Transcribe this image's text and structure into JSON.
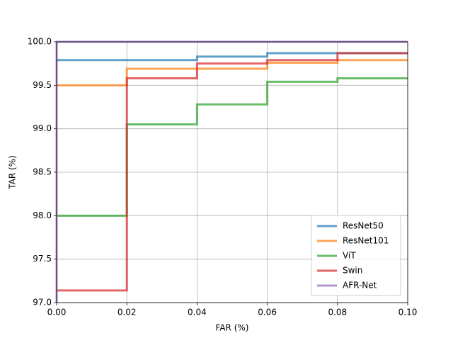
{
  "chart_data": {
    "type": "line",
    "step": true,
    "xlabel": "FAR (%)",
    "ylabel": "TAR (%)",
    "xlim": [
      0,
      0.1
    ],
    "ylim": [
      97,
      100
    ],
    "xticks": [
      {
        "value": 0,
        "label": "0.00"
      },
      0.02,
      0.04,
      0.06,
      0.08,
      {
        "value": 0.1,
        "label": "0.10"
      }
    ],
    "yticks": [
      {
        "value": 97,
        "label": "97.0"
      },
      97.5,
      {
        "value": 98,
        "label": "98.0"
      },
      98.5,
      {
        "value": 99,
        "label": "99.0"
      },
      99.5,
      {
        "value": 100,
        "label": "100.0"
      }
    ],
    "grid": true,
    "legend": "lower right",
    "series": [
      {
        "name": "ResNet50",
        "color": "#1f77b4",
        "x": [
          0,
          0.04,
          0.04,
          0.06,
          0.06,
          0.1
        ],
        "values": [
          99.79,
          99.79,
          99.83,
          99.83,
          99.87,
          99.87
        ]
      },
      {
        "name": "ResNet101",
        "color": "#ff7f0e",
        "x": [
          0,
          0.02,
          0.02,
          0.06,
          0.06,
          0.08,
          0.08,
          0.1
        ],
        "values": [
          99.5,
          99.5,
          99.69,
          99.69,
          99.76,
          99.76,
          99.79,
          99.79
        ]
      },
      {
        "name": "ViT",
        "color": "#2ca02c",
        "x": [
          0,
          0.02,
          0.02,
          0.04,
          0.04,
          0.06,
          0.06,
          0.08,
          0.08,
          0.1
        ],
        "values": [
          98,
          98,
          99.05,
          99.05,
          99.28,
          99.28,
          99.54,
          99.54,
          99.58,
          99.58
        ]
      },
      {
        "name": "Swin",
        "color": "#d62728",
        "x": [
          0,
          0.02,
          0.02,
          0.04,
          0.04,
          0.06,
          0.06,
          0.08,
          0.08,
          0.1
        ],
        "values": [
          97.14,
          97.14,
          99.58,
          99.58,
          99.75,
          99.75,
          99.79,
          99.79,
          99.87,
          99.87
        ]
      },
      {
        "name": "AFR-Net",
        "color": "#9467bd",
        "x": [
          0,
          0,
          0.1
        ],
        "values": [
          97,
          100,
          100
        ]
      }
    ]
  }
}
